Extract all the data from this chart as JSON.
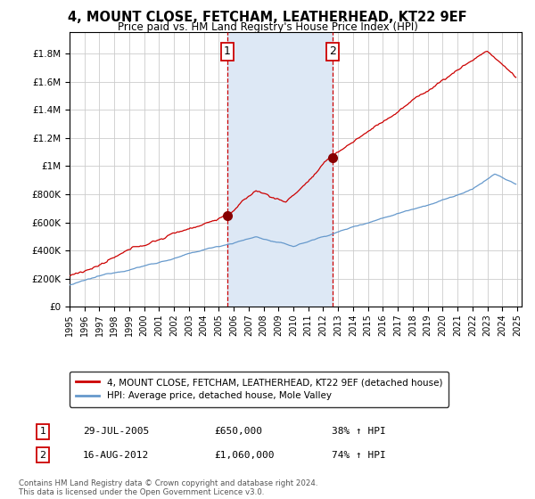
{
  "title": "4, MOUNT CLOSE, FETCHAM, LEATHERHEAD, KT22 9EF",
  "subtitle": "Price paid vs. HM Land Registry's House Price Index (HPI)",
  "title_fontsize": 10.5,
  "subtitle_fontsize": 8.5,
  "yticks": [
    0,
    200000,
    400000,
    600000,
    800000,
    1000000,
    1200000,
    1400000,
    1600000,
    1800000
  ],
  "ylim": [
    0,
    1950000
  ],
  "year_start": 1995,
  "year_end": 2025,
  "xticks": [
    1995,
    1996,
    1997,
    1998,
    1999,
    2000,
    2001,
    2002,
    2003,
    2004,
    2005,
    2006,
    2007,
    2008,
    2009,
    2010,
    2011,
    2012,
    2013,
    2014,
    2015,
    2016,
    2017,
    2018,
    2019,
    2020,
    2021,
    2022,
    2023,
    2024,
    2025
  ],
  "vline1_x": 2005.57,
  "vline2_x": 2012.62,
  "vline_color": "#cc0000",
  "shade_color": "#dde8f5",
  "sale1_date": "29-JUL-2005",
  "sale1_price": "£650,000",
  "sale1_hpi": "38% ↑ HPI",
  "sale2_date": "16-AUG-2012",
  "sale2_price": "£1,060,000",
  "sale2_hpi": "74% ↑ HPI",
  "legend_line1": "4, MOUNT CLOSE, FETCHAM, LEATHERHEAD, KT22 9EF (detached house)",
  "legend_line2": "HPI: Average price, detached house, Mole Valley",
  "line1_color": "#cc0000",
  "line2_color": "#6699cc",
  "dot_color": "#880000",
  "copyright_text": "Contains HM Land Registry data © Crown copyright and database right 2024.\nThis data is licensed under the Open Government Licence v3.0.",
  "background_color": "#ffffff",
  "grid_color": "#cccccc"
}
